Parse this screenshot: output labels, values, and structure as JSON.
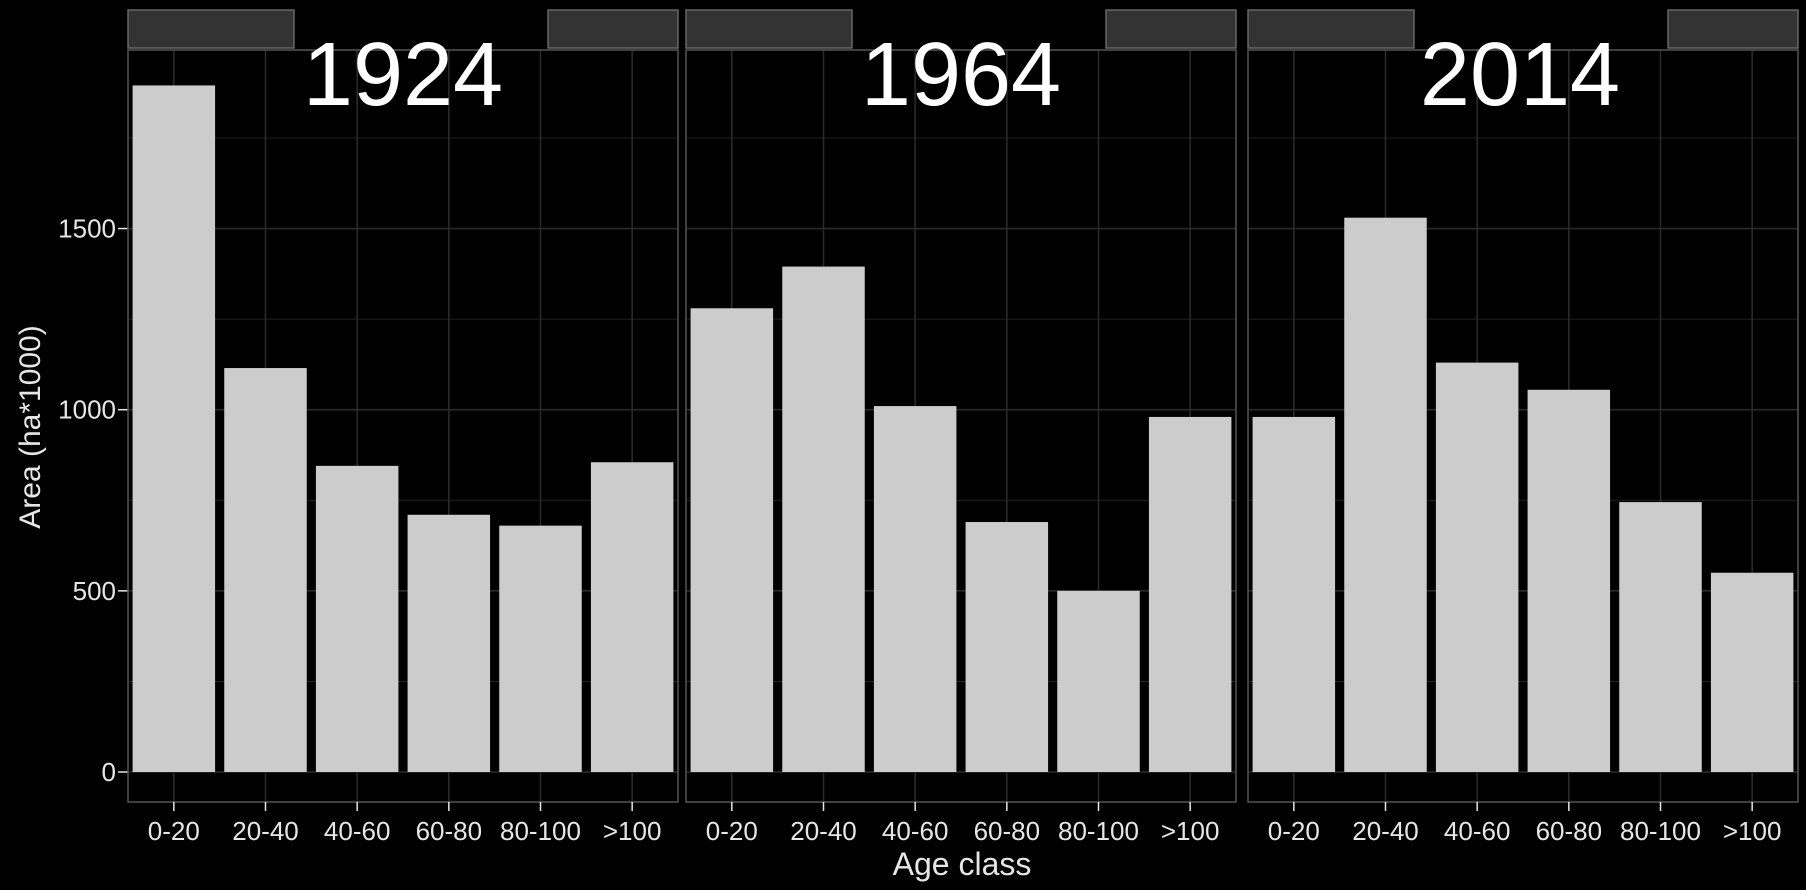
{
  "chart_data": {
    "type": "bar",
    "xlabel": "Age class",
    "ylabel": "Area (ha*1000)",
    "categories": [
      "0-20",
      "20-40",
      "40-60",
      "60-80",
      "80-100",
      ">100"
    ],
    "ylim": [
      0,
      2000
    ],
    "yticks": [
      0,
      500,
      1000,
      1500
    ],
    "grid": true,
    "panels": [
      {
        "title": "1924",
        "values": [
          1895,
          1115,
          845,
          710,
          680,
          855
        ]
      },
      {
        "title": "1964",
        "values": [
          1280,
          1395,
          1010,
          690,
          500,
          980
        ]
      },
      {
        "title": "2014",
        "values": [
          980,
          1530,
          1130,
          1055,
          745,
          550
        ]
      }
    ],
    "colors": {
      "background": "#000000",
      "panel_background": "#000000",
      "bar_fill": "#cccccc",
      "grid": "#2a2a2a",
      "strip": "#333333",
      "text": "#e6e6e6",
      "title": "#ffffff"
    }
  }
}
